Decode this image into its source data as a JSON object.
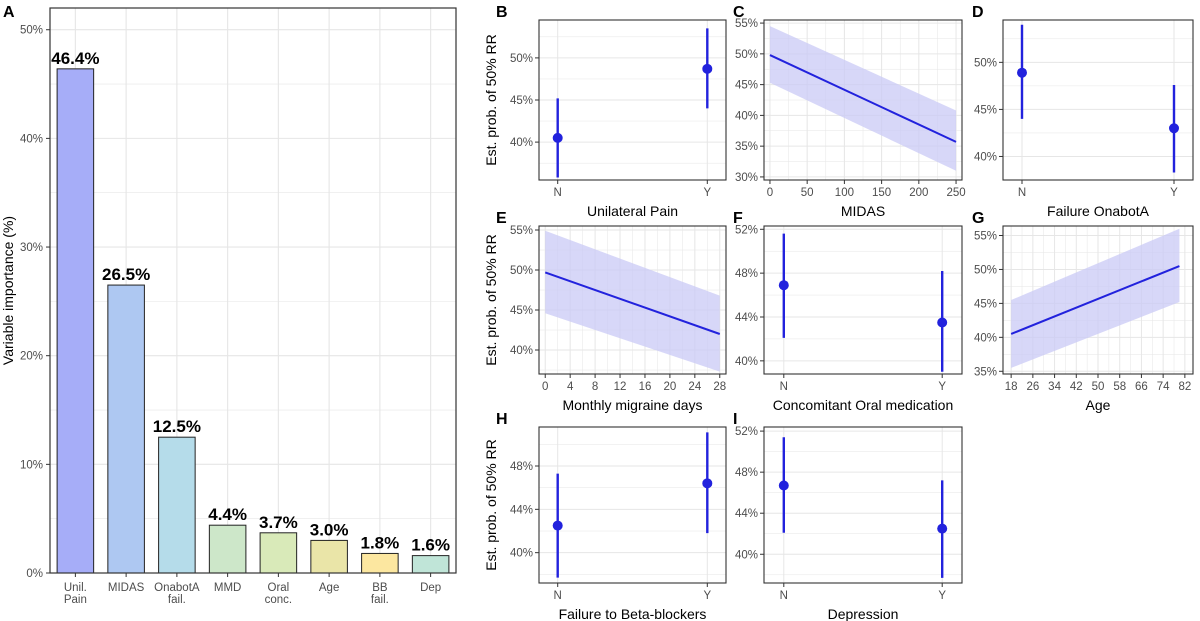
{
  "colors": {
    "panel_border": "#333333",
    "grid": "#e6e6e6",
    "point_line": "#2222dd",
    "band": "#c9c9f5"
  },
  "chart_data": [
    {
      "panel": "A",
      "type": "bar",
      "ylabel": "Variable importance (%)",
      "ylim": [
        0,
        52
      ],
      "yticks": [
        "0%",
        "10%",
        "20%",
        "30%",
        "40%",
        "50%"
      ],
      "categories": [
        [
          "Unil.",
          "Pain"
        ],
        [
          "MIDAS"
        ],
        [
          "OnabotA",
          "fail."
        ],
        [
          "MMD"
        ],
        [
          "Oral",
          "conc."
        ],
        [
          "Age"
        ],
        [
          "BB",
          "fail."
        ],
        [
          "Dep"
        ]
      ],
      "values": [
        46.4,
        26.5,
        12.5,
        4.4,
        3.7,
        3.0,
        1.8,
        1.6
      ],
      "value_labels": [
        "46.4%",
        "26.5%",
        "12.5%",
        "4.4%",
        "3.7%",
        "3.0%",
        "1.8%",
        "1.6%"
      ],
      "bar_colors": [
        "#a6adf8",
        "#aec8f2",
        "#b5dcea",
        "#cde7c9",
        "#d9eab9",
        "#eae5a8",
        "#fce7a0",
        "#c0e5d8"
      ]
    },
    {
      "panel": "B",
      "type": "pointrange",
      "xlabel": "Unilateral Pain",
      "ylabel": "Est. prob. of 50% RR",
      "ylim": [
        35.5,
        54.5
      ],
      "yticks": [
        40,
        45,
        50
      ],
      "ytick_labels": [
        "40%",
        "45%",
        "50%"
      ],
      "categories": [
        "N",
        "Y"
      ],
      "points": [
        {
          "x": "N",
          "y": 40.5,
          "lo": 35.8,
          "hi": 45.2
        },
        {
          "x": "Y",
          "y": 48.7,
          "lo": 44.0,
          "hi": 53.5
        }
      ]
    },
    {
      "panel": "C",
      "type": "line",
      "xlabel": "MIDAS",
      "ylim": [
        29.5,
        55.5
      ],
      "xlim": [
        -8,
        258
      ],
      "xticks": [
        0,
        50,
        100,
        150,
        200,
        250
      ],
      "yticks": [
        30,
        35,
        40,
        45,
        50,
        55
      ],
      "ytick_labels": [
        "30%",
        "35%",
        "40%",
        "45%",
        "50%",
        "55%"
      ],
      "line": {
        "x": [
          0,
          250
        ],
        "y": [
          49.8,
          35.7
        ]
      },
      "band": {
        "x": [
          0,
          250
        ],
        "lo": [
          45.3,
          31.0
        ],
        "hi": [
          54.5,
          40.8
        ]
      }
    },
    {
      "panel": "D",
      "type": "pointrange",
      "xlabel": "Failure OnabotA",
      "ylim": [
        37.5,
        54.5
      ],
      "yticks": [
        40,
        45,
        50
      ],
      "ytick_labels": [
        "40%",
        "45%",
        "50%"
      ],
      "categories": [
        "N",
        "Y"
      ],
      "points": [
        {
          "x": "N",
          "y": 48.9,
          "lo": 44.0,
          "hi": 54.0
        },
        {
          "x": "Y",
          "y": 43.0,
          "lo": 38.3,
          "hi": 47.6
        }
      ]
    },
    {
      "panel": "E",
      "type": "line",
      "xlabel": "Monthly migraine days",
      "ylabel": "Est. prob. of 50% RR",
      "ylim": [
        37.0,
        55.5
      ],
      "xlim": [
        -1,
        29
      ],
      "xticks": [
        0,
        4,
        8,
        12,
        16,
        20,
        24,
        28
      ],
      "yticks": [
        40,
        45,
        50,
        55
      ],
      "ytick_labels": [
        "40%",
        "45%",
        "50%",
        "55%"
      ],
      "line": {
        "x": [
          0,
          28
        ],
        "y": [
          49.7,
          42.0
        ]
      },
      "band": {
        "x": [
          0,
          28
        ],
        "lo": [
          44.6,
          37.3
        ],
        "hi": [
          54.9,
          46.8
        ]
      }
    },
    {
      "panel": "F",
      "type": "pointrange",
      "xlabel": "Concomitant Oral medication",
      "ylim": [
        38.8,
        52.3
      ],
      "yticks": [
        40,
        44,
        48,
        52
      ],
      "ytick_labels": [
        "40%",
        "44%",
        "48%",
        "52%"
      ],
      "categories": [
        "N",
        "Y"
      ],
      "points": [
        {
          "x": "N",
          "y": 46.9,
          "lo": 42.1,
          "hi": 51.6
        },
        {
          "x": "Y",
          "y": 43.5,
          "lo": 39.0,
          "hi": 48.2
        }
      ]
    },
    {
      "panel": "G",
      "type": "line",
      "xlabel": "Age",
      "ylim": [
        34.6,
        56.4
      ],
      "xlim": [
        15,
        85
      ],
      "xticks": [
        18,
        26,
        34,
        42,
        50,
        58,
        66,
        74,
        82
      ],
      "yticks": [
        35,
        40,
        45,
        50,
        55
      ],
      "ytick_labels": [
        "35%",
        "40%",
        "45%",
        "50%",
        "55%"
      ],
      "line": {
        "x": [
          18,
          80
        ],
        "y": [
          40.5,
          50.5
        ]
      },
      "band": {
        "x": [
          18,
          80
        ],
        "lo": [
          35.5,
          45.2
        ],
        "hi": [
          45.5,
          56.0
        ]
      }
    },
    {
      "panel": "H",
      "type": "pointrange",
      "xlabel": "Failure to Beta-blockers",
      "ylabel": "Est. prob. of 50% RR",
      "ylim": [
        37.2,
        51.6
      ],
      "yticks": [
        40,
        44,
        48
      ],
      "ytick_labels": [
        "40%",
        "44%",
        "48%"
      ],
      "categories": [
        "N",
        "Y"
      ],
      "points": [
        {
          "x": "N",
          "y": 42.5,
          "lo": 37.7,
          "hi": 47.3
        },
        {
          "x": "Y",
          "y": 46.4,
          "lo": 41.8,
          "hi": 51.1
        }
      ]
    },
    {
      "panel": "I",
      "type": "pointrange",
      "xlabel": "Depression",
      "ylim": [
        37.2,
        52.4
      ],
      "yticks": [
        40,
        44,
        48,
        52
      ],
      "ytick_labels": [
        "40%",
        "44%",
        "48%",
        "52%"
      ],
      "categories": [
        "N",
        "Y"
      ],
      "points": [
        {
          "x": "N",
          "y": 46.7,
          "lo": 42.1,
          "hi": 51.4
        },
        {
          "x": "Y",
          "y": 42.5,
          "lo": 37.7,
          "hi": 47.2
        }
      ]
    }
  ]
}
